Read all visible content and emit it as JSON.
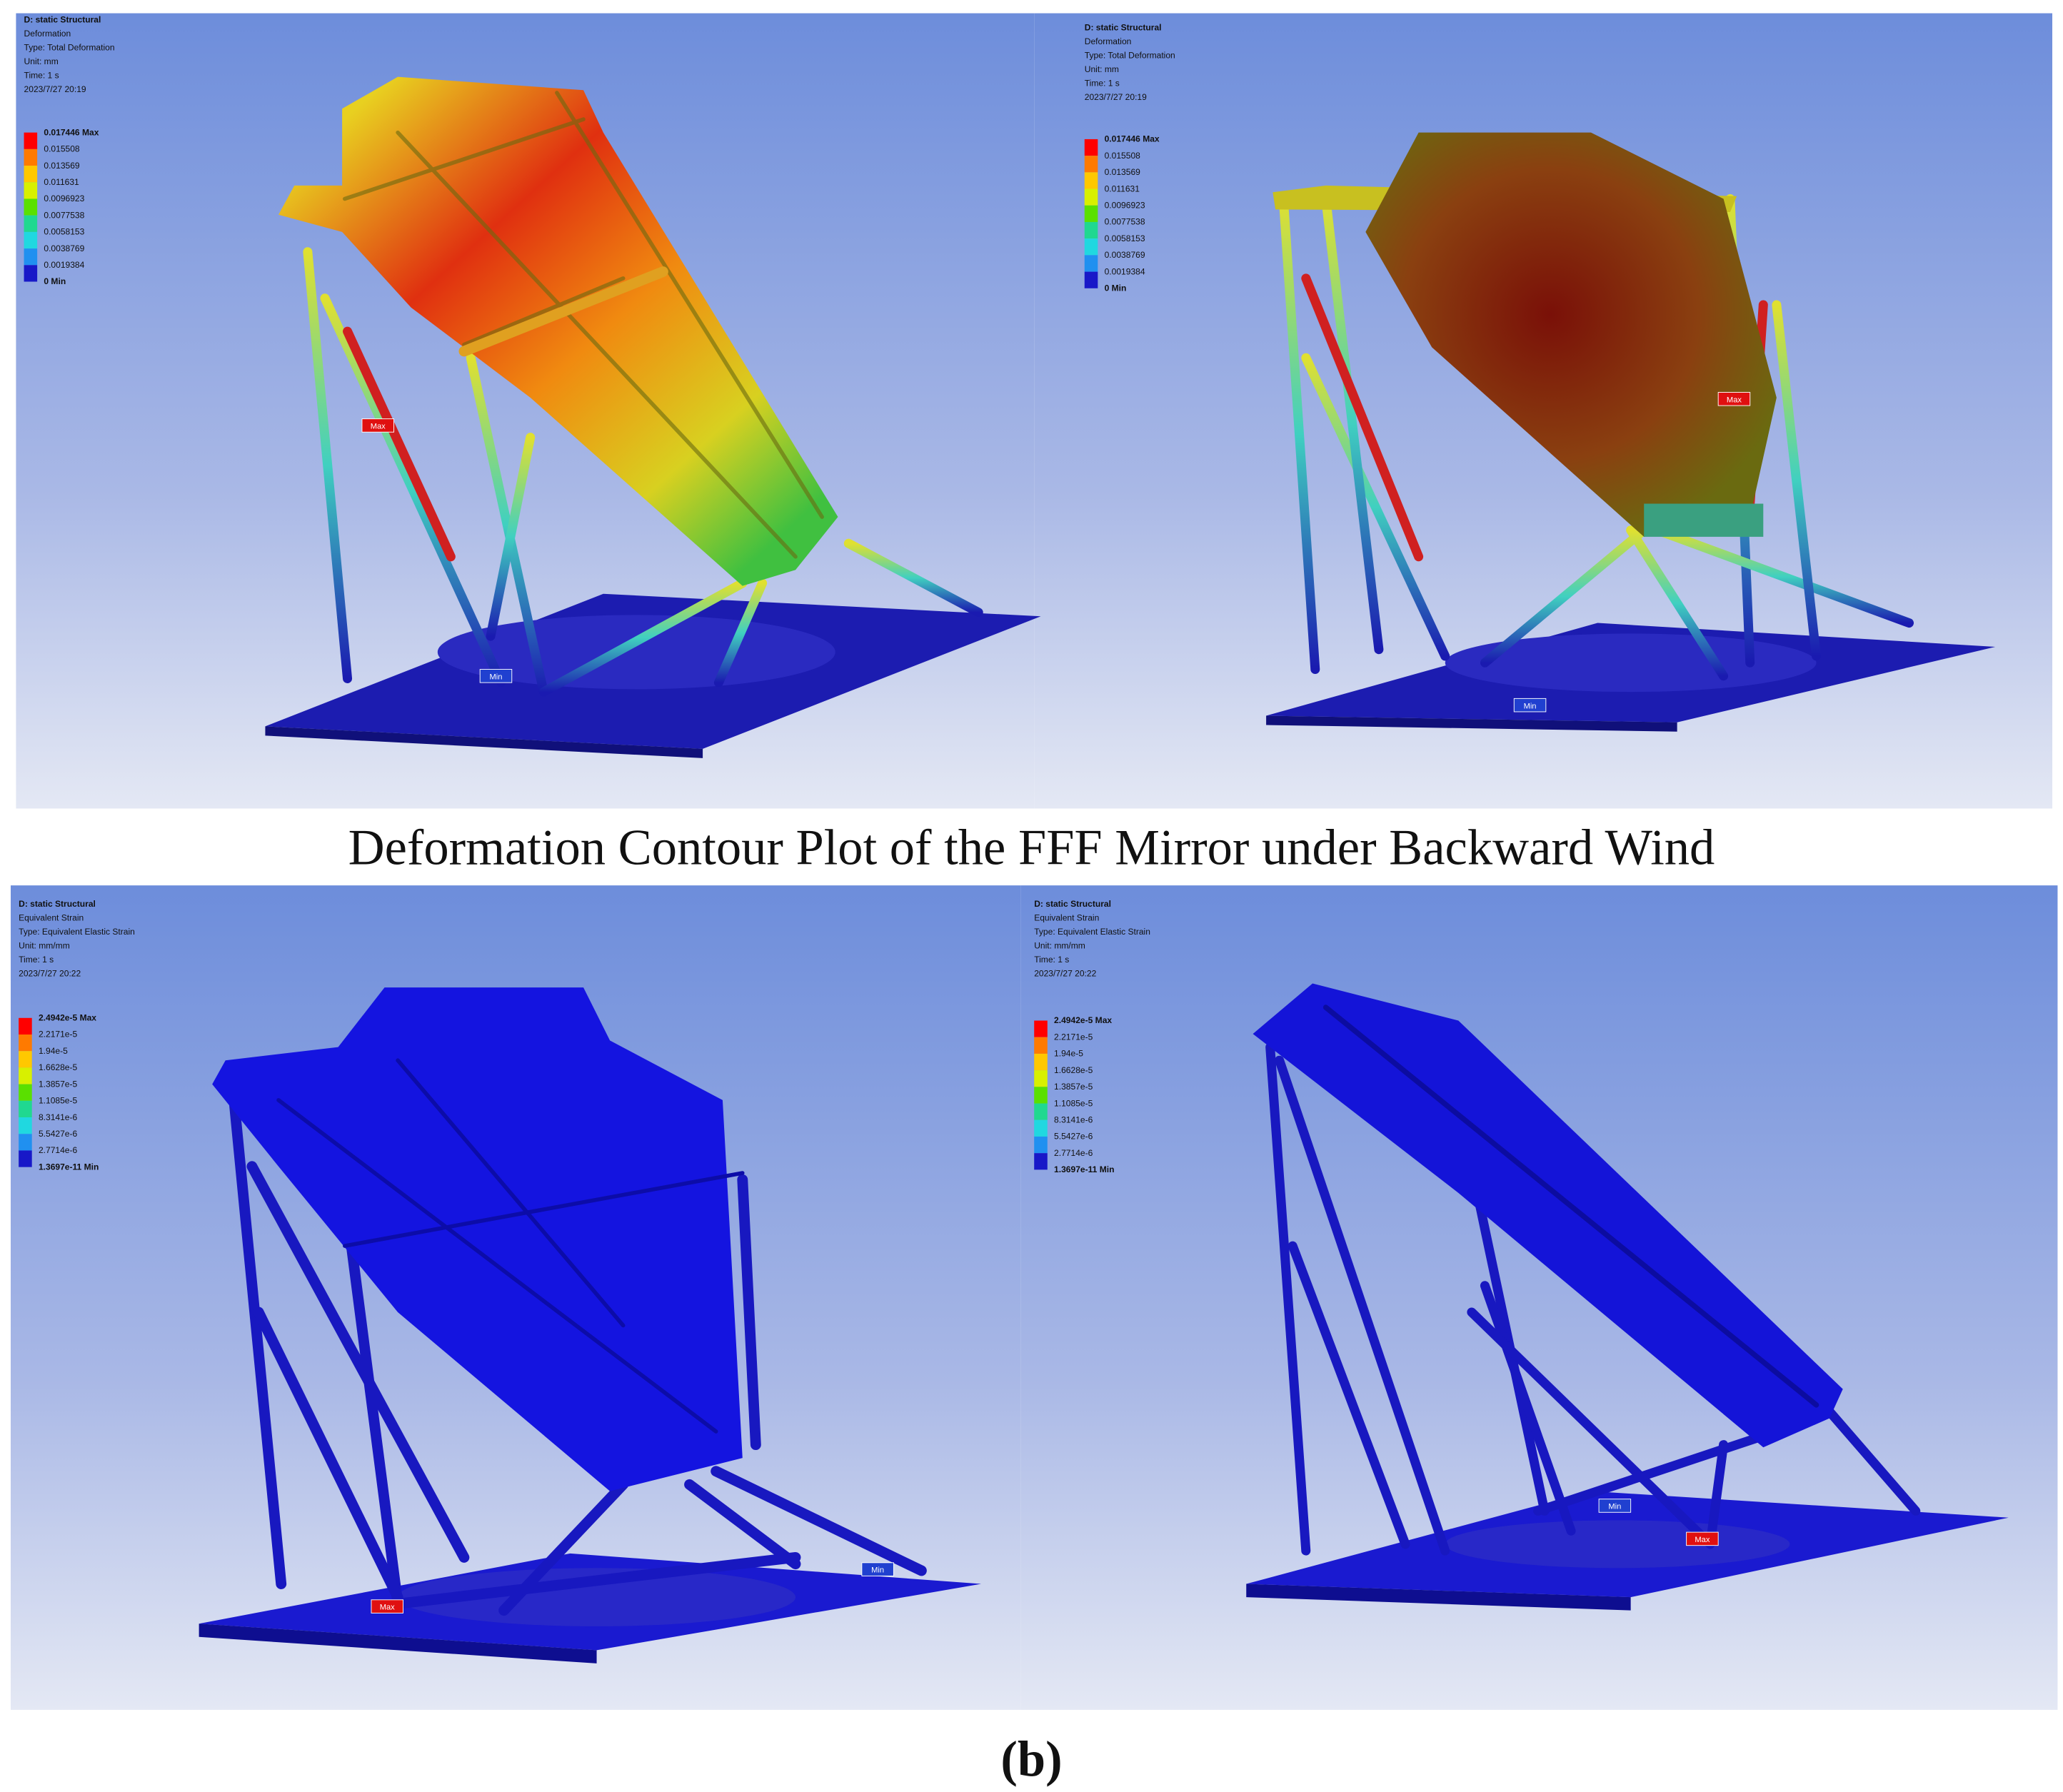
{
  "panels": [
    {
      "header": [
        "D: static Structural",
        "Deformation",
        "Type: Total Deformation",
        "Unit: mm",
        "Time: 1 s",
        "2023/7/27 20:19"
      ],
      "legend": [
        "0.017446 Max",
        "0.015508",
        "0.013569",
        "0.011631",
        "0.0096923",
        "0.0077538",
        "0.0058153",
        "0.0038769",
        "0.0019384",
        "0 Min"
      ],
      "markers": [
        "Max",
        "Min"
      ]
    },
    {
      "header": [
        "D: static Structural",
        "Deformation",
        "Type: Total Deformation",
        "Unit: mm",
        "Time: 1 s",
        "2023/7/27 20:19"
      ],
      "legend": [
        "0.017446 Max",
        "0.015508",
        "0.013569",
        "0.011631",
        "0.0096923",
        "0.0077538",
        "0.0058153",
        "0.0038769",
        "0.0019384",
        "0 Min"
      ],
      "markers": [
        "Max",
        "Min"
      ]
    },
    {
      "header": [
        "D: static Structural",
        "Equivalent Strain",
        "Type: Equivalent Elastic Strain",
        "Unit: mm/mm",
        "Time: 1 s",
        "2023/7/27 20:22"
      ],
      "legend": [
        "2.4942e-5 Max",
        "2.2171e-5",
        "1.94e-5",
        "1.6628e-5",
        "1.3857e-5",
        "1.1085e-5",
        "8.3141e-6",
        "5.5427e-6",
        "2.7714e-6",
        "1.3697e-11 Min"
      ],
      "markers": [
        "Max",
        "Min"
      ]
    },
    {
      "header": [
        "D: static Structural",
        "Equivalent Strain",
        "Type: Equivalent Elastic Strain",
        "Unit: mm/mm",
        "Time: 1 s",
        "2023/7/27 20:22"
      ],
      "legend": [
        "2.4942e-5 Max",
        "2.2171e-5",
        "1.94e-5",
        "1.6628e-5",
        "1.3857e-5",
        "1.1085e-5",
        "8.3141e-6",
        "5.5427e-6",
        "2.7714e-6",
        "1.3697e-11 Min"
      ],
      "markers": [
        "Max",
        "Min"
      ]
    }
  ],
  "caption": "Deformation Contour Plot of the FFF Mirror under Backward Wind",
  "label": "(b)"
}
